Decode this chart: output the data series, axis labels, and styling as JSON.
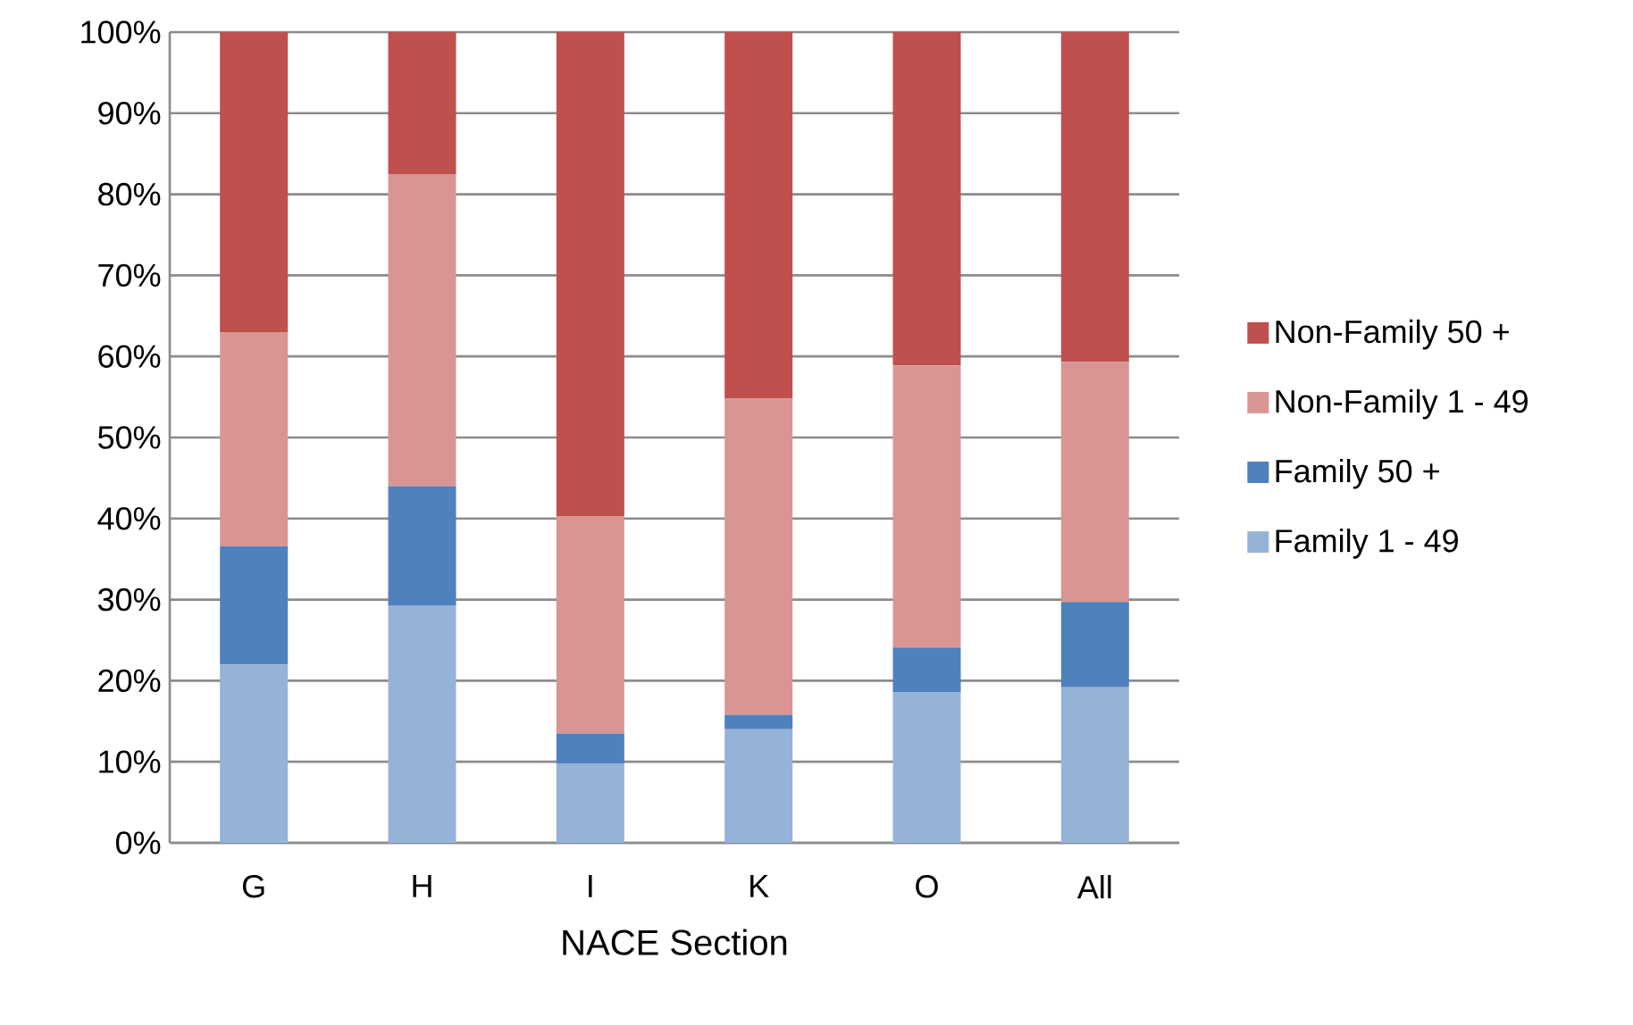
{
  "chart_data": {
    "type": "bar",
    "stacked": true,
    "xlabel": "NACE Section",
    "categories": [
      "G",
      "H",
      "I",
      "K",
      "O",
      "All"
    ],
    "series": [
      {
        "name": "Family 1 - 49",
        "color": "#95b3d7",
        "values": [
          22,
          29.3,
          9.8,
          14,
          18.6,
          19.2
        ]
      },
      {
        "name": "Family 50 +",
        "color": "#4f81bd",
        "values": [
          14.6,
          14.7,
          3.7,
          1.8,
          5.5,
          10.5
        ]
      },
      {
        "name": "Non-Family 1 - 49",
        "color": "#d99594",
        "values": [
          26.4,
          38.5,
          26.8,
          39,
          34.8,
          29.6
        ]
      },
      {
        "name": "Non-Family 50 +",
        "color": "#c0504d",
        "values": [
          37,
          17.5,
          59.7,
          45.2,
          41.1,
          40.7
        ]
      }
    ],
    "ylim": [
      0,
      100
    ],
    "yticks": [
      {
        "value": 0,
        "label": "0%"
      },
      {
        "value": 10,
        "label": "10%"
      },
      {
        "value": 20,
        "label": "20%"
      },
      {
        "value": 30,
        "label": "30%"
      },
      {
        "value": 40,
        "label": "40%"
      },
      {
        "value": 50,
        "label": "50%"
      },
      {
        "value": 60,
        "label": "60%"
      },
      {
        "value": 70,
        "label": "70%"
      },
      {
        "value": 80,
        "label": "80%"
      },
      {
        "value": 90,
        "label": "90%"
      },
      {
        "value": 100,
        "label": "100%"
      }
    ],
    "grid": "y",
    "legend": "right"
  }
}
